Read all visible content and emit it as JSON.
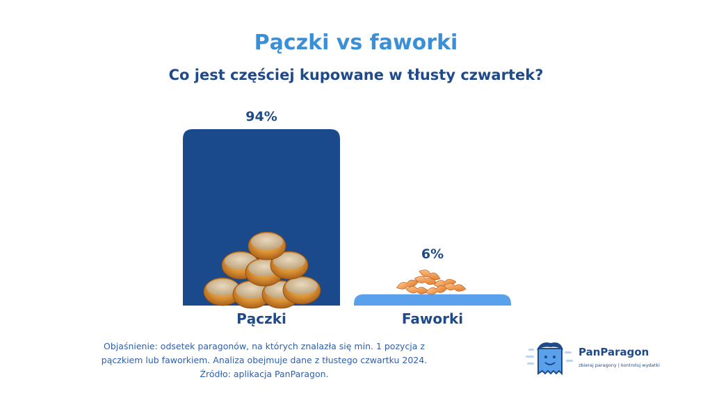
{
  "header": {
    "title": "Pączki vs faworki",
    "subtitle": "Co jest częściej kupowane w tłusty czwartek?"
  },
  "chart_data": {
    "type": "bar",
    "categories": [
      "Pączki",
      "Faworki"
    ],
    "values": [
      94,
      6
    ],
    "value_labels": [
      "94%",
      "6%"
    ],
    "ylim": [
      0,
      100
    ],
    "grid": false,
    "colors": [
      "#1a4a8c",
      "#5aa0ea"
    ]
  },
  "footnote": {
    "line1": "Objaśnienie: odsetek paragonów, na których znalazła się min. 1 pozycja z",
    "line2": "pączkiem lub faworkiem. Analiza obejmuje dane z tłustego czwartku 2024.",
    "line3": "Źródło: aplikacja PanParagon."
  },
  "logo": {
    "name": "PanParagon",
    "tagline": "zbieraj paragony | kontroluj wydatki",
    "icon": "receipt-mascot-icon"
  },
  "icons": {
    "donut_stack": "donut-pile-icon",
    "faworki_pile": "faworki-pile-icon"
  }
}
